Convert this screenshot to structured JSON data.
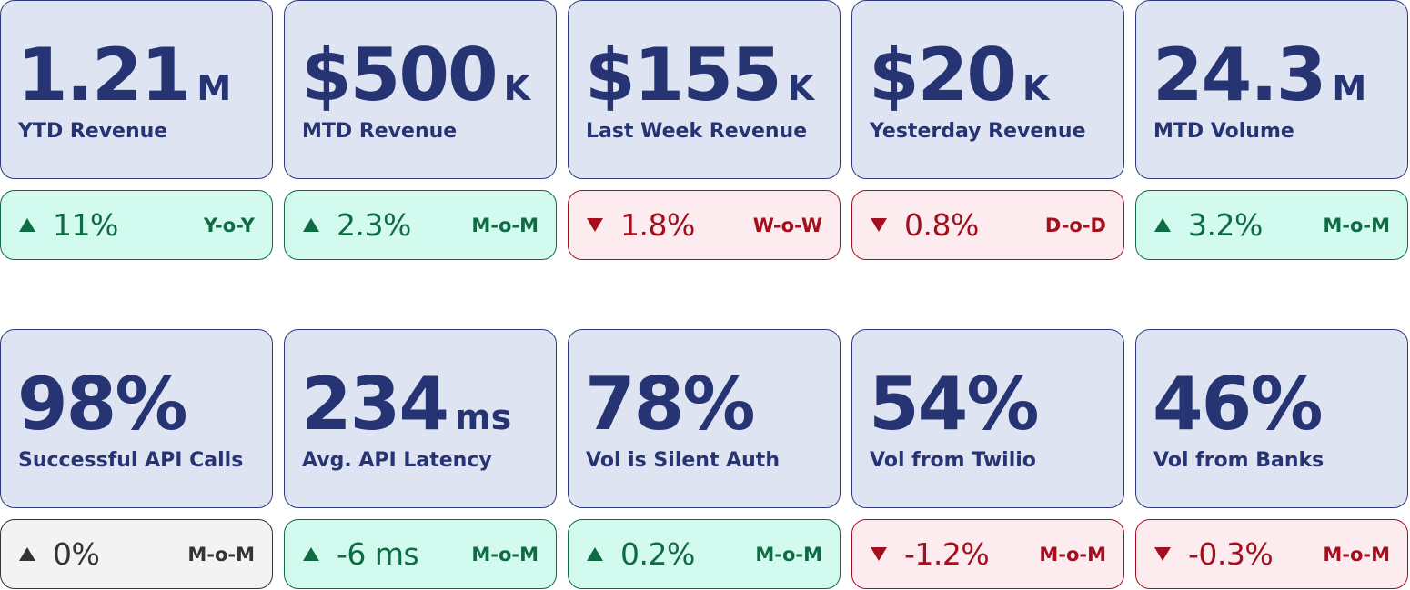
{
  "rows": [
    [
      {
        "value": "1.21",
        "unit": "M",
        "label": "YTD Revenue",
        "delta": "11%",
        "direction": "up",
        "period": "Y-o-Y"
      },
      {
        "value": "$500",
        "unit": "K",
        "label": "MTD Revenue",
        "delta": "2.3%",
        "direction": "up",
        "period": "M-o-M"
      },
      {
        "value": "$155",
        "unit": "K",
        "label": "Last Week Revenue",
        "delta": "1.8%",
        "direction": "down",
        "period": "W-o-W"
      },
      {
        "value": "$20",
        "unit": "K",
        "label": "Yesterday Revenue",
        "delta": "0.8%",
        "direction": "down",
        "period": "D-o-D"
      },
      {
        "value": "24.3",
        "unit": "M",
        "label": "MTD Volume",
        "delta": "3.2%",
        "direction": "up",
        "period": "M-o-M"
      }
    ],
    [
      {
        "value": "98%",
        "unit": "",
        "label": "Successful API Calls",
        "delta": "0%",
        "direction": "flat",
        "period": "M-o-M"
      },
      {
        "value": "234",
        "unit": "ms",
        "label": "Avg. API Latency",
        "delta": "-6 ms",
        "direction": "up",
        "period": "M-o-M"
      },
      {
        "value": "78%",
        "unit": "",
        "label": "Vol is Silent Auth",
        "delta": "0.2%",
        "direction": "up",
        "period": "M-o-M"
      },
      {
        "value": "54%",
        "unit": "",
        "label": "Vol from Twilio",
        "delta": "-1.2%",
        "direction": "down",
        "period": "M-o-M"
      },
      {
        "value": "46%",
        "unit": "",
        "label": "Vol from Banks",
        "delta": "-0.3%",
        "direction": "down",
        "period": "M-o-M"
      }
    ]
  ],
  "colors": {
    "card_bg": "#dfe4f3",
    "card_text": "#273474",
    "up": "#0e6b43",
    "up_bg": "#d2faee",
    "down": "#a30f1d",
    "down_bg": "#fdecef",
    "flat": "#333333",
    "flat_bg": "#f3f3f3"
  },
  "icons": {
    "up": "triangle-up-icon",
    "down": "triangle-down-icon",
    "flat": "triangle-up-icon"
  }
}
